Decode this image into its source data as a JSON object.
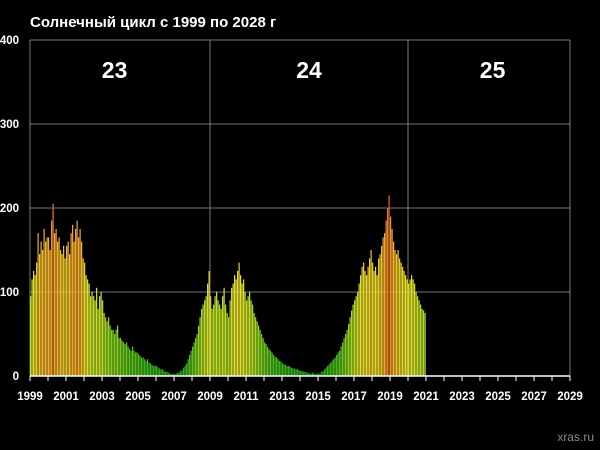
{
  "chart_data": {
    "type": "bar",
    "title": "Солнечный цикл с 1999 по 2028 г",
    "xlabel": "",
    "ylabel": "",
    "xlim": [
      1999,
      2029
    ],
    "ylim": [
      0,
      400
    ],
    "y_ticks": [
      "0",
      "100",
      "200",
      "300",
      "400"
    ],
    "x_ticks": [
      "1999",
      "2001",
      "2003",
      "2005",
      "2007",
      "2009",
      "2011",
      "2013",
      "2015",
      "2017",
      "2019",
      "2021",
      "2023",
      "2025",
      "2027",
      "2029"
    ],
    "cycle_boundaries": [
      2009.0,
      2020.0
    ],
    "cycles": [
      {
        "label": "23",
        "center": 2003.7
      },
      {
        "label": "24",
        "center": 2014.5
      },
      {
        "label": "25",
        "center": 2024.7
      }
    ],
    "grid": true,
    "bar_color_scale": [
      "#1aa31a",
      "#8ed121",
      "#e4e02a",
      "#f0a12a",
      "#d6381c"
    ],
    "series": [
      {
        "start": 1999.0,
        "step": 0.0833333,
        "values": [
          95,
          115,
          125,
          120,
          135,
          170,
          145,
          160,
          150,
          175,
          160,
          165,
          165,
          150,
          185,
          205,
          170,
          175,
          160,
          165,
          150,
          145,
          155,
          140,
          155,
          160,
          145,
          170,
          180,
          160,
          175,
          185,
          165,
          175,
          160,
          140,
          135,
          120,
          115,
          110,
          95,
          100,
          95,
          90,
          105,
          80,
          95,
          100,
          90,
          75,
          70,
          65,
          70,
          60,
          55,
          55,
          50,
          55,
          60,
          45,
          45,
          42,
          40,
          38,
          40,
          35,
          32,
          30,
          35,
          30,
          28,
          28,
          26,
          24,
          22,
          22,
          20,
          18,
          20,
          16,
          15,
          13,
          12,
          12,
          12,
          10,
          9,
          8,
          8,
          6,
          5,
          5,
          4,
          3,
          2,
          3,
          2,
          3,
          4,
          4,
          6,
          7,
          10,
          12,
          15,
          20,
          25,
          30,
          35,
          40,
          45,
          50,
          60,
          70,
          80,
          85,
          90,
          95,
          110,
          125,
          95,
          80,
          85,
          95,
          100,
          90,
          85,
          80,
          95,
          105,
          85,
          75,
          70,
          90,
          105,
          110,
          120,
          115,
          125,
          135,
          120,
          110,
          115,
          100,
          90,
          95,
          100,
          90,
          85,
          75,
          70,
          65,
          60,
          55,
          50,
          45,
          40,
          38,
          35,
          32,
          30,
          28,
          25,
          23,
          22,
          20,
          18,
          17,
          15,
          14,
          13,
          12,
          12,
          11,
          10,
          9,
          9,
          8,
          8,
          7,
          6,
          6,
          5,
          5,
          4,
          4,
          3,
          3,
          4,
          3,
          2,
          3,
          3,
          3,
          5,
          6,
          8,
          10,
          12,
          14,
          16,
          18,
          20,
          22,
          25,
          28,
          30,
          35,
          40,
          45,
          50,
          55,
          62,
          70,
          78,
          85,
          90,
          95,
          100,
          110,
          120,
          130,
          135,
          125,
          120,
          130,
          140,
          150,
          135,
          125,
          130,
          120,
          140,
          145,
          155,
          165,
          170,
          185,
          200,
          215,
          190,
          175,
          160,
          150,
          145,
          150,
          140,
          135,
          130,
          125,
          120,
          115,
          110,
          115,
          120,
          115,
          110,
          100,
          95,
          90,
          85,
          80,
          78,
          75
        ]
      }
    ]
  },
  "watermark": "xras.ru"
}
